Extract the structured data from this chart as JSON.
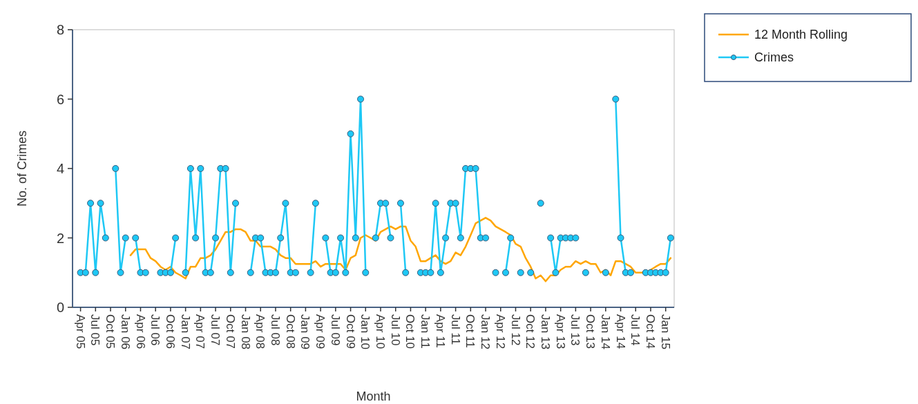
{
  "chart_data": {
    "type": "line",
    "xlabel": "Month",
    "ylabel": "No. of Crimes",
    "categories": [
      "Apr 05",
      null,
      null,
      "Jul 05",
      null,
      null,
      "Oct 05",
      null,
      null,
      "Jan 06",
      null,
      null,
      "Apr 06",
      null,
      null,
      "Jul 06",
      null,
      null,
      "Oct 06",
      null,
      null,
      "Jan 07",
      null,
      null,
      "Apr 07",
      null,
      null,
      "Jul 07",
      null,
      null,
      "Oct 07",
      null,
      null,
      "Jan 08",
      null,
      null,
      "Apr 08",
      null,
      null,
      "Jul 08",
      null,
      null,
      "Oct 08",
      null,
      null,
      "Jan 09",
      null,
      null,
      "Apr 09",
      null,
      null,
      "Jul 09",
      null,
      null,
      "Oct 09",
      null,
      null,
      "Jan 10",
      null,
      null,
      "Apr 10",
      null,
      null,
      "Jul 10",
      null,
      null,
      "Oct 10",
      null,
      null,
      "Jan 11",
      null,
      null,
      "Apr 11",
      null,
      null,
      "Jul 11",
      null,
      null,
      "Oct 11",
      null,
      null,
      "Jan 12",
      null,
      null,
      "Apr 12",
      null,
      null,
      "Jul 12",
      null,
      null,
      "Oct 12",
      null,
      null,
      "Jan 13",
      null,
      null,
      "Apr 13",
      null,
      null,
      "Jul 13",
      null,
      null,
      "Oct 13",
      null,
      null,
      "Jan 14",
      null,
      null,
      "Apr 14",
      null,
      null,
      "Jul 14",
      null,
      null,
      "Oct 14",
      null,
      null,
      "Jan 15",
      null
    ],
    "series": [
      {
        "name": "12 Month Rolling",
        "color": "#ffa600",
        "marker": "none",
        "values": [
          null,
          null,
          null,
          null,
          null,
          null,
          null,
          null,
          null,
          null,
          1.5,
          1.67,
          1.67,
          1.67,
          1.42,
          1.33,
          1.17,
          1.08,
          1.17,
          1,
          0.92,
          0.83,
          1.17,
          1.17,
          1.42,
          1.42,
          1.5,
          1.67,
          1.92,
          2.17,
          2.17,
          2.25,
          2.25,
          2.17,
          1.92,
          1.92,
          1.75,
          1.75,
          1.75,
          1.67,
          1.5,
          1.42,
          1.42,
          1.25,
          1.25,
          1.25,
          1.25,
          1.33,
          1.17,
          1.25,
          1.25,
          1.25,
          1.25,
          1.08,
          1.42,
          1.5,
          2,
          2.08,
          2,
          1.92,
          2.17,
          2.25,
          2.33,
          2.25,
          2.33,
          2.33,
          1.92,
          1.75,
          1.33,
          1.33,
          1.42,
          1.5,
          1.33,
          1.25,
          1.33,
          1.58,
          1.5,
          1.75,
          2.08,
          2.42,
          2.5,
          2.58,
          2.5,
          2.33,
          2.25,
          2.17,
          2.08,
          1.83,
          1.75,
          1.42,
          1.17,
          0.83,
          0.92,
          0.75,
          0.92,
          0.92,
          1.08,
          1.17,
          1.17,
          1.33,
          1.25,
          1.33,
          1.25,
          1.25,
          1,
          1.08,
          0.92,
          1.33,
          1.33,
          1.25,
          1.17,
          1,
          1,
          1,
          1.08,
          1.17,
          1.25,
          1.25,
          1.42
        ]
      },
      {
        "name": "Crimes",
        "color": "#1ec8f5",
        "marker": "circle",
        "values": [
          1,
          1,
          3,
          1,
          3,
          2,
          null,
          4,
          1,
          2,
          null,
          2,
          1,
          1,
          null,
          null,
          1,
          1,
          1,
          2,
          null,
          1,
          4,
          2,
          4,
          1,
          1,
          2,
          4,
          4,
          1,
          3,
          null,
          null,
          1,
          2,
          2,
          1,
          1,
          1,
          2,
          3,
          1,
          1,
          null,
          null,
          1,
          3,
          null,
          2,
          1,
          1,
          2,
          1,
          5,
          2,
          6,
          1,
          null,
          2,
          3,
          3,
          2,
          null,
          3,
          1,
          null,
          null,
          1,
          1,
          1,
          3,
          1,
          2,
          3,
          3,
          2,
          4,
          4,
          4,
          2,
          2,
          null,
          1,
          null,
          1,
          2,
          null,
          1,
          null,
          1,
          null,
          3,
          null,
          2,
          1,
          2,
          2,
          2,
          2,
          null,
          1,
          null,
          null,
          null,
          1,
          null,
          6,
          2,
          1,
          1,
          null,
          null,
          1,
          1,
          1,
          1,
          1,
          2
        ]
      }
    ],
    "ylim": [
      0,
      8
    ],
    "yticks": [
      0,
      2,
      4,
      6,
      8
    ],
    "grid": false,
    "legend": "top right",
    "line_style": "solid"
  }
}
